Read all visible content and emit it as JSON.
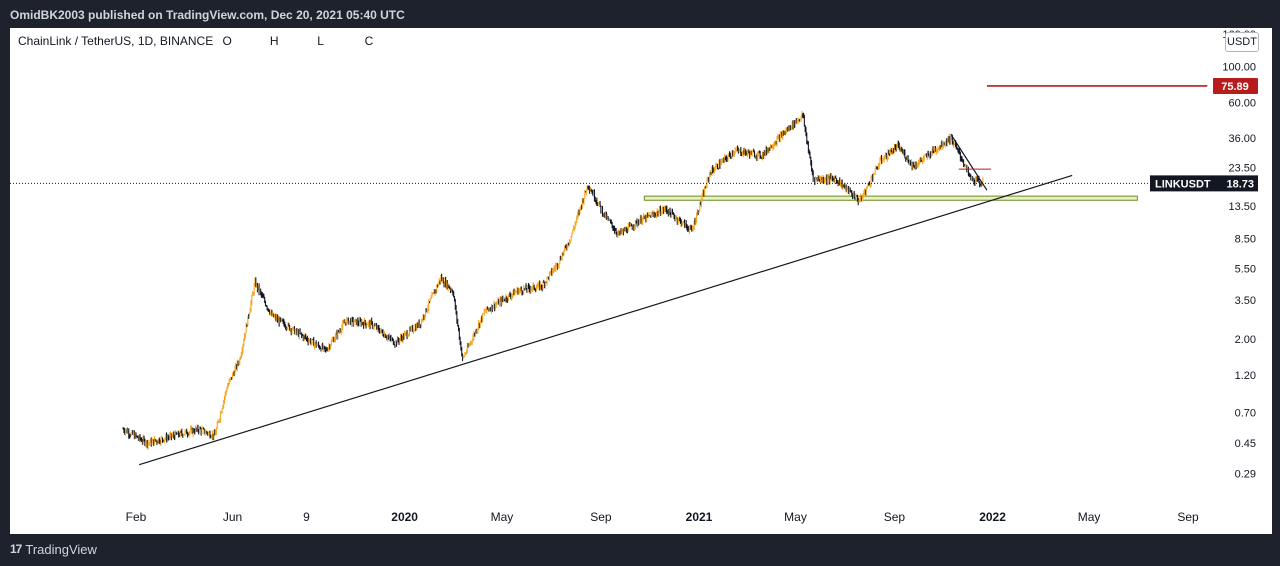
{
  "header": {
    "published_by": "OmidBK2003 published on TradingView.com, Dec 20, 2021 05:40 UTC"
  },
  "legend": {
    "symbol": "ChainLink / TetherUS, 1D, BINANCE",
    "o_label": "O",
    "h_label": "H",
    "l_label": "L",
    "c_label": "C"
  },
  "currency_button": "USDT",
  "footer": {
    "logo_mark": "17",
    "brand": "TradingView"
  },
  "colors": {
    "up_candle": "#f5a623",
    "down_candle": "#131722",
    "target_line": "#b71c1c",
    "support_zone": "#6b8e23",
    "last_price_bg": "#131722"
  },
  "chart_data": {
    "type": "candlestick",
    "scale": "log",
    "ylim": [
      0.25,
      160
    ],
    "y_ticks": [
      "160.00",
      "100.00",
      "60.00",
      "36.00",
      "23.50",
      "13.50",
      "8.50",
      "5.50",
      "3.50",
      "2.00",
      "1.20",
      "0.70",
      "0.45",
      "0.29"
    ],
    "x_labels": [
      "Feb",
      "Jun",
      "9",
      "2020",
      "May",
      "Sep",
      "2021",
      "May",
      "Sep",
      "2022",
      "May",
      "Sep"
    ],
    "x_label_dates": [
      "2019-02-01",
      "2019-06-01",
      "2019-09-01",
      "2020-01-01",
      "2020-05-01",
      "2020-09-01",
      "2021-01-01",
      "2021-05-01",
      "2021-09-01",
      "2022-01-01",
      "2022-05-01",
      "2022-09-01"
    ],
    "price_path": [
      [
        "2019-01-16",
        0.55
      ],
      [
        "2019-02-15",
        0.45
      ],
      [
        "2019-03-20",
        0.5
      ],
      [
        "2019-04-20",
        0.55
      ],
      [
        "2019-05-10",
        0.5
      ],
      [
        "2019-05-25",
        1.0
      ],
      [
        "2019-06-10",
        1.5
      ],
      [
        "2019-06-29",
        4.5
      ],
      [
        "2019-07-20",
        2.8
      ],
      [
        "2019-08-20",
        2.2
      ],
      [
        "2019-09-25",
        1.7
      ],
      [
        "2019-10-20",
        2.6
      ],
      [
        "2019-11-20",
        2.5
      ],
      [
        "2019-12-20",
        1.9
      ],
      [
        "2020-01-20",
        2.5
      ],
      [
        "2020-02-15",
        4.8
      ],
      [
        "2020-03-01",
        4.0
      ],
      [
        "2020-03-13",
        1.5
      ],
      [
        "2020-04-10",
        3.0
      ],
      [
        "2020-05-20",
        4.0
      ],
      [
        "2020-06-20",
        4.3
      ],
      [
        "2020-07-10",
        6.0
      ],
      [
        "2020-07-25",
        8.5
      ],
      [
        "2020-08-16",
        18.5
      ],
      [
        "2020-09-05",
        12.0
      ],
      [
        "2020-09-23",
        9.0
      ],
      [
        "2020-10-20",
        11.0
      ],
      [
        "2020-11-20",
        13.0
      ],
      [
        "2020-12-23",
        9.5
      ],
      [
        "2021-01-15",
        22.0
      ],
      [
        "2021-02-15",
        30.0
      ],
      [
        "2021-03-20",
        28.0
      ],
      [
        "2021-04-15",
        38.0
      ],
      [
        "2021-05-10",
        50.0
      ],
      [
        "2021-05-23",
        20.0
      ],
      [
        "2021-06-20",
        20.0
      ],
      [
        "2021-07-20",
        14.5
      ],
      [
        "2021-08-15",
        26.0
      ],
      [
        "2021-09-05",
        32.0
      ],
      [
        "2021-09-25",
        24.0
      ],
      [
        "2021-10-20",
        30.0
      ],
      [
        "2021-11-10",
        36.0
      ],
      [
        "2021-11-25",
        26.0
      ],
      [
        "2021-12-05",
        20.0
      ],
      [
        "2021-12-20",
        18.73
      ]
    ],
    "last_price": {
      "symbol": "LINKUSDT",
      "value": "18.73"
    },
    "target_price": {
      "value": "75.89",
      "from_date": "2021-12-25",
      "to_date": "2022-09-25"
    },
    "support_zone": {
      "low": 14.7,
      "high": 15.6,
      "from_date": "2020-10-25",
      "to_date": "2022-06-30"
    },
    "resistance_segment": {
      "value": 23.0,
      "from_date": "2021-11-20",
      "to_date": "2021-12-30"
    },
    "trendline": {
      "from_date": "2019-02-05",
      "from_value": 0.33,
      "to_date": "2022-04-10",
      "to_value": 21.0
    },
    "descending_line": {
      "from_date": "2021-11-10",
      "from_value": 38.0,
      "to_date": "2021-12-25",
      "to_value": 17.0
    }
  }
}
